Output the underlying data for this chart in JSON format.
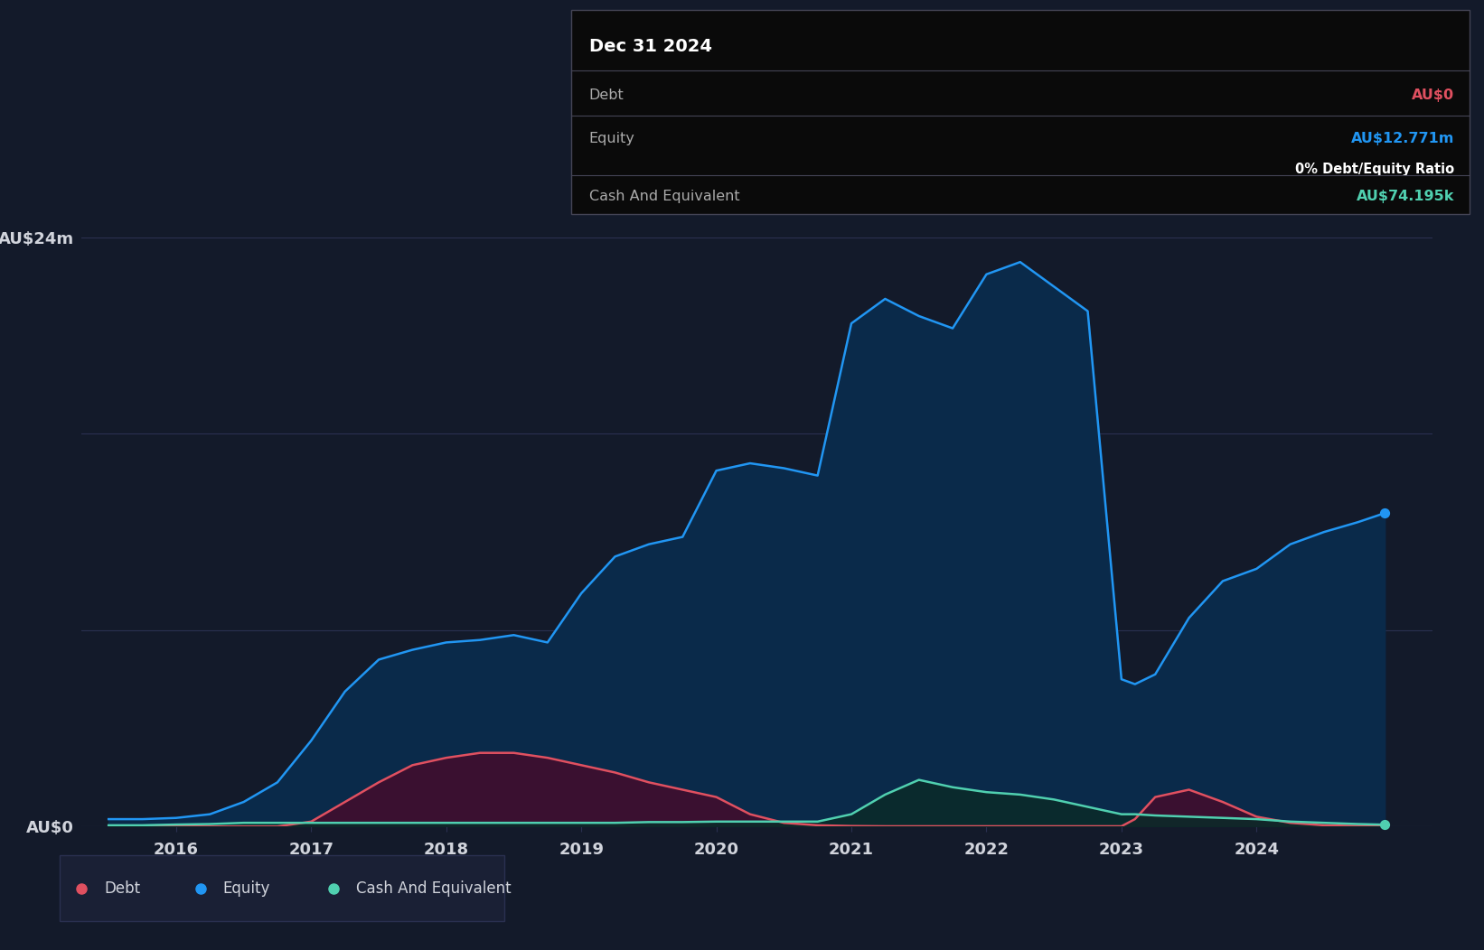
{
  "background_color": "#131a2a",
  "plot_bg_color": "#131a2a",
  "grid_color": "#2a3050",
  "text_color": "#d1d4dc",
  "equity_color": "#2196f3",
  "equity_fill": "#0a2a4a",
  "debt_color": "#e05060",
  "debt_fill": "#3a1030",
  "cash_color": "#50d0b0",
  "cash_fill": "#0a2a28",
  "ylabel_top": "AU$24m",
  "ylabel_bottom": "AU$0",
  "ylim_max": 24,
  "tooltip_title": "Dec 31 2024",
  "tooltip_debt_label": "Debt",
  "tooltip_debt_value": "AU$0",
  "tooltip_debt_value_color": "#e05060",
  "tooltip_equity_label": "Equity",
  "tooltip_equity_value": "AU$12.771m",
  "tooltip_equity_value_color": "#2196f3",
  "tooltip_ratio_text": "0% Debt/Equity Ratio",
  "tooltip_cash_label": "Cash And Equivalent",
  "tooltip_cash_value": "AU$74.195k",
  "tooltip_cash_value_color": "#50d0b0",
  "legend_debt": "Debt",
  "legend_equity": "Equity",
  "legend_cash": "Cash And Equivalent",
  "times": [
    2015.5,
    2015.75,
    2016.0,
    2016.25,
    2016.5,
    2016.75,
    2017.0,
    2017.25,
    2017.5,
    2017.75,
    2018.0,
    2018.25,
    2018.5,
    2018.75,
    2019.0,
    2019.25,
    2019.5,
    2019.75,
    2020.0,
    2020.25,
    2020.5,
    2020.75,
    2021.0,
    2021.25,
    2021.5,
    2021.75,
    2022.0,
    2022.25,
    2022.5,
    2022.75,
    2023.0,
    2023.1,
    2023.25,
    2023.5,
    2023.75,
    2024.0,
    2024.25,
    2024.5,
    2024.75,
    2024.95
  ],
  "equity": [
    0.3,
    0.3,
    0.35,
    0.5,
    1.0,
    1.8,
    3.5,
    5.5,
    6.8,
    7.2,
    7.5,
    7.6,
    7.8,
    7.5,
    9.5,
    11.0,
    11.5,
    11.8,
    14.5,
    14.8,
    14.6,
    14.3,
    20.5,
    21.5,
    20.8,
    20.3,
    22.5,
    23.0,
    22.0,
    21.0,
    6.0,
    5.8,
    6.2,
    8.5,
    10.0,
    10.5,
    11.5,
    12.0,
    12.4,
    12.771
  ],
  "debt": [
    0.0,
    0.0,
    0.0,
    0.0,
    0.0,
    0.0,
    0.2,
    1.0,
    1.8,
    2.5,
    2.8,
    3.0,
    3.0,
    2.8,
    2.5,
    2.2,
    1.8,
    1.5,
    1.2,
    0.5,
    0.15,
    0.05,
    0.02,
    0.01,
    0.01,
    0.01,
    0.01,
    0.01,
    0.01,
    0.01,
    0.01,
    0.3,
    1.2,
    1.5,
    1.0,
    0.4,
    0.15,
    0.05,
    0.02,
    0.0
  ],
  "cash": [
    0.05,
    0.05,
    0.08,
    0.1,
    0.15,
    0.15,
    0.15,
    0.15,
    0.15,
    0.15,
    0.15,
    0.15,
    0.15,
    0.15,
    0.15,
    0.15,
    0.18,
    0.18,
    0.2,
    0.2,
    0.2,
    0.2,
    0.5,
    1.3,
    1.9,
    1.6,
    1.4,
    1.3,
    1.1,
    0.8,
    0.5,
    0.5,
    0.45,
    0.4,
    0.35,
    0.3,
    0.2,
    0.15,
    0.1,
    0.074
  ],
  "xticks": [
    2016,
    2017,
    2018,
    2019,
    2020,
    2021,
    2022,
    2023,
    2024
  ],
  "xlim": [
    2015.3,
    2025.3
  ]
}
